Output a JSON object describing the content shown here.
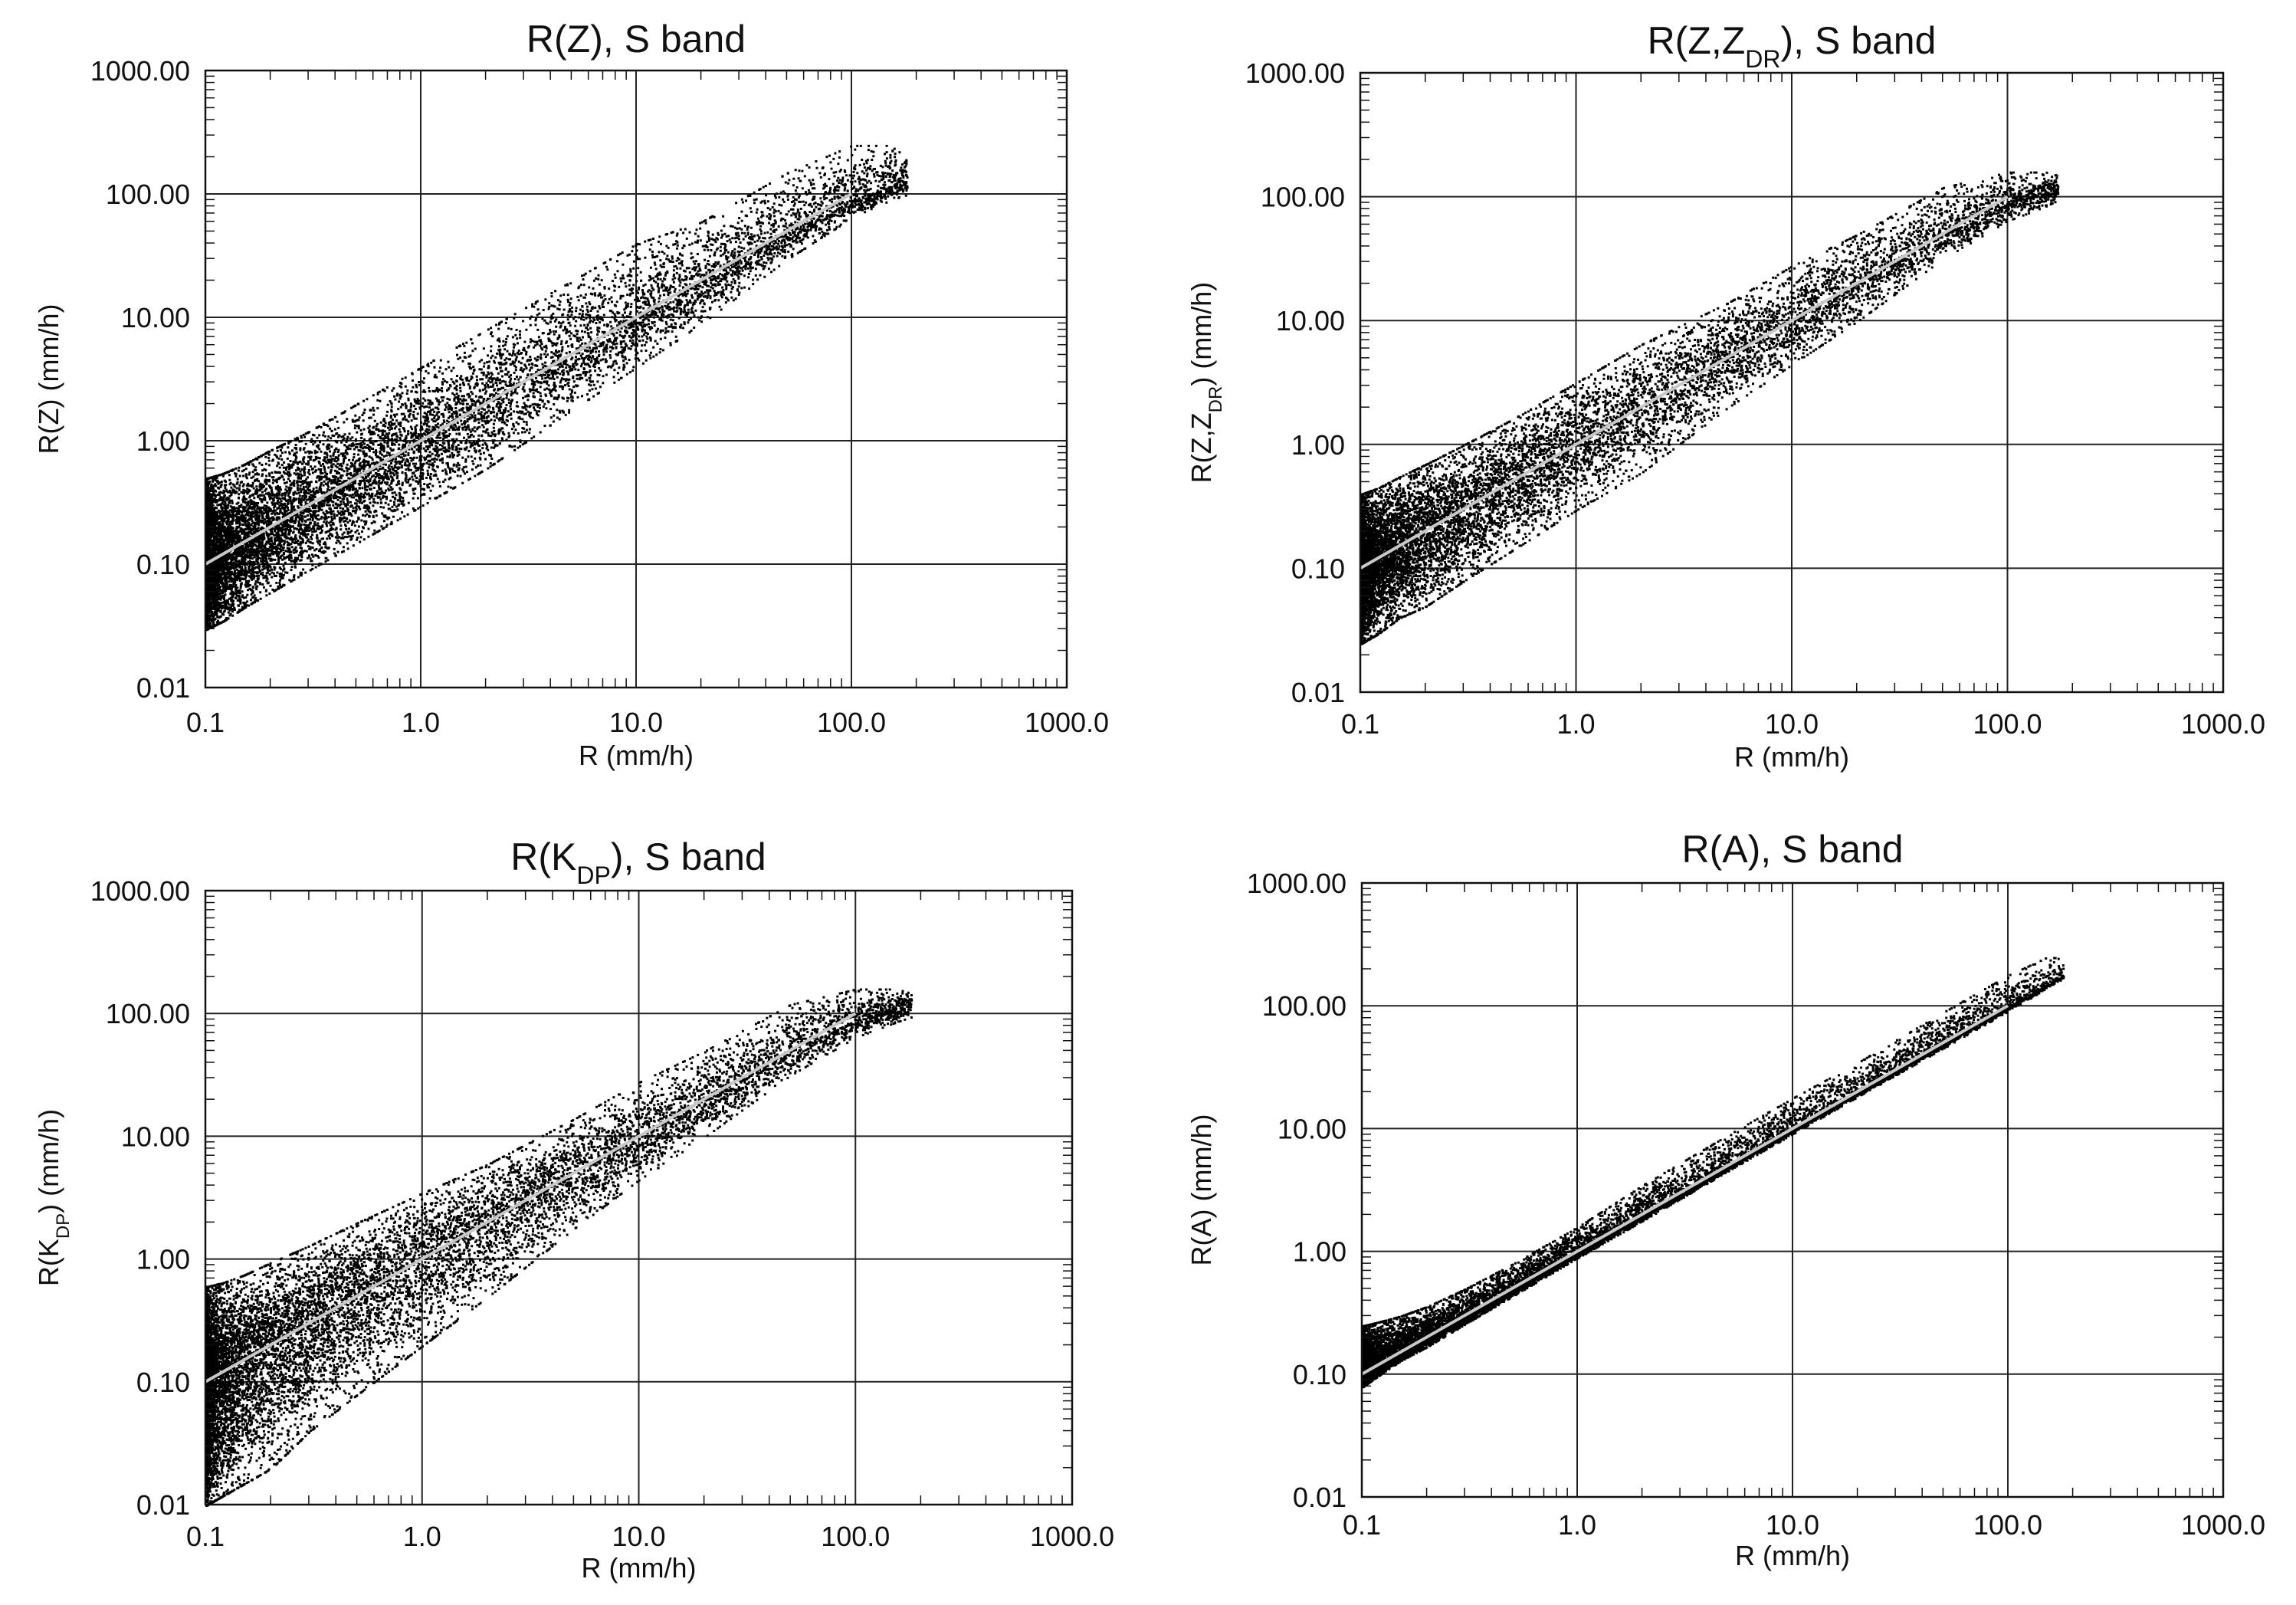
{
  "chart_data": [
    {
      "type": "scatter",
      "title": "R(Z), S band",
      "title_main": "R(Z), S band",
      "title_sub": "",
      "title_tail": "",
      "xlabel": "R (mm/h)",
      "ylabel": "R(Z) (mm/h)",
      "ylabel_main": "R(Z) (mm/h)",
      "ylabel_sub": "",
      "ylabel_tail": "",
      "xscale": "log",
      "yscale": "log",
      "xlim": [
        0.1,
        1000.0
      ],
      "ylim": [
        0.01,
        1000.0
      ],
      "xticks": [
        "0.1",
        "1.0",
        "10.0",
        "100.0",
        "1000.0"
      ],
      "yticks": [
        "0.01",
        "0.10",
        "1.00",
        "10.00",
        "100.00",
        "1000.00"
      ],
      "grid": true,
      "series": [
        {
          "name": "scatter",
          "color": "#000000",
          "x": [
            0.1,
            0.1,
            0.12,
            0.15,
            0.2,
            0.3,
            0.5,
            1.0,
            2.0,
            5.0,
            10.0,
            20.0,
            50.0,
            100.0,
            150.0,
            180.0
          ],
          "y_median": [
            0.1,
            0.1,
            0.12,
            0.15,
            0.2,
            0.3,
            0.5,
            1.0,
            2.0,
            5.0,
            10.0,
            20.0,
            50.0,
            90.0,
            120.0,
            130.0
          ],
          "y_low": [
            0.03,
            0.03,
            0.035,
            0.045,
            0.06,
            0.09,
            0.15,
            0.3,
            0.6,
            1.8,
            4.0,
            9.0,
            30.0,
            65.0,
            90.0,
            100.0
          ],
          "y_high": [
            0.5,
            0.5,
            0.55,
            0.65,
            0.85,
            1.2,
            2.0,
            4.0,
            8.0,
            20.0,
            40.0,
            60.0,
            150.0,
            250.0,
            250.0,
            200.0
          ]
        },
        {
          "name": "1:1 line",
          "color": "#c8c8c8",
          "x": [
            0.1,
            100.0
          ],
          "y": [
            0.1,
            100.0
          ]
        }
      ]
    },
    {
      "type": "scatter",
      "title": "R(Z,ZDR), S band",
      "title_main": "R(Z,Z",
      "title_sub": "DR",
      "title_tail": "), S band",
      "xlabel": "R (mm/h)",
      "ylabel": "R(Z,ZDR) (mm/h)",
      "ylabel_main": "R(Z,Z",
      "ylabel_sub": "DR",
      "ylabel_tail": ") (mm/h)",
      "xscale": "log",
      "yscale": "log",
      "xlim": [
        0.1,
        1000.0
      ],
      "ylim": [
        0.01,
        1000.0
      ],
      "xticks": [
        "0.1",
        "1.0",
        "10.0",
        "100.0",
        "1000.0"
      ],
      "yticks": [
        "0.01",
        "0.10",
        "1.00",
        "10.00",
        "100.00",
        "1000.00"
      ],
      "grid": true,
      "series": [
        {
          "name": "scatter",
          "color": "#000000",
          "x": [
            0.1,
            0.1,
            0.12,
            0.15,
            0.2,
            0.3,
            0.5,
            1.0,
            2.0,
            5.0,
            10.0,
            20.0,
            50.0,
            100.0,
            150.0,
            170.0
          ],
          "y_median": [
            0.1,
            0.1,
            0.12,
            0.15,
            0.2,
            0.3,
            0.5,
            1.0,
            2.0,
            5.0,
            10.0,
            20.0,
            50.0,
            90.0,
            110.0,
            120.0
          ],
          "y_low": [
            0.025,
            0.025,
            0.03,
            0.04,
            0.05,
            0.08,
            0.14,
            0.3,
            0.6,
            2.0,
            4.5,
            10.0,
            32.0,
            65.0,
            85.0,
            95.0
          ],
          "y_high": [
            0.4,
            0.4,
            0.45,
            0.55,
            0.7,
            1.0,
            1.6,
            3.2,
            6.5,
            14.0,
            28.0,
            50.0,
            120.0,
            160.0,
            160.0,
            150.0
          ]
        },
        {
          "name": "1:1 line",
          "color": "#c8c8c8",
          "x": [
            0.1,
            100.0
          ],
          "y": [
            0.1,
            100.0
          ]
        }
      ]
    },
    {
      "type": "scatter",
      "title": "R(KDP), S band",
      "title_main": "R(K",
      "title_sub": "DP",
      "title_tail": "), S band",
      "xlabel": "R (mm/h)",
      "ylabel": "R(KDP) (mm/h)",
      "ylabel_main": "R(K",
      "ylabel_sub": "DP",
      "ylabel_tail": ") (mm/h)",
      "xscale": "log",
      "yscale": "log",
      "xlim": [
        0.1,
        1000.0
      ],
      "ylim": [
        0.01,
        1000.0
      ],
      "xticks": [
        "0.1",
        "1.0",
        "10.0",
        "100.0",
        "1000.0"
      ],
      "yticks": [
        "0.01",
        "0.10",
        "1.00",
        "10.00",
        "100.00",
        "1000.00"
      ],
      "grid": true,
      "series": [
        {
          "name": "scatter",
          "color": "#000000",
          "x": [
            0.1,
            0.1,
            0.12,
            0.15,
            0.2,
            0.3,
            0.5,
            1.0,
            2.0,
            5.0,
            10.0,
            20.0,
            50.0,
            100.0,
            150.0,
            180.0
          ],
          "y_median": [
            0.1,
            0.1,
            0.12,
            0.15,
            0.2,
            0.3,
            0.5,
            1.0,
            2.0,
            5.0,
            10.0,
            20.0,
            50.0,
            90.0,
            110.0,
            120.0
          ],
          "y_low": [
            0.01,
            0.01,
            0.012,
            0.015,
            0.02,
            0.04,
            0.08,
            0.2,
            0.5,
            1.8,
            4.5,
            10.0,
            32.0,
            65.0,
            85.0,
            95.0
          ],
          "y_high": [
            0.6,
            0.6,
            0.65,
            0.75,
            0.95,
            1.3,
            2.0,
            3.5,
            6.0,
            14.0,
            28.0,
            50.0,
            120.0,
            160.0,
            160.0,
            150.0
          ]
        },
        {
          "name": "1:1 line",
          "color": "#c8c8c8",
          "x": [
            0.1,
            100.0
          ],
          "y": [
            0.1,
            100.0
          ]
        }
      ]
    },
    {
      "type": "scatter",
      "title": "R(A), S band",
      "title_main": "R(A), S band",
      "title_sub": "",
      "title_tail": "",
      "xlabel": "R (mm/h)",
      "ylabel": "R(A) (mm/h)",
      "ylabel_main": "R(A) (mm/h)",
      "ylabel_sub": "",
      "ylabel_tail": "",
      "xscale": "log",
      "yscale": "log",
      "xlim": [
        0.1,
        1000.0
      ],
      "ylim": [
        0.01,
        1000.0
      ],
      "xticks": [
        "0.1",
        "1.0",
        "10.0",
        "100.0",
        "1000.0"
      ],
      "yticks": [
        "0.01",
        "0.10",
        "1.00",
        "10.00",
        "100.00",
        "1000.00"
      ],
      "grid": true,
      "series": [
        {
          "name": "scatter",
          "color": "#000000",
          "x": [
            0.1,
            0.1,
            0.12,
            0.15,
            0.2,
            0.3,
            0.5,
            1.0,
            2.0,
            5.0,
            10.0,
            20.0,
            50.0,
            100.0,
            150.0,
            180.0
          ],
          "y_median": [
            0.1,
            0.1,
            0.12,
            0.15,
            0.2,
            0.3,
            0.5,
            1.0,
            2.0,
            5.0,
            10.0,
            20.0,
            50.0,
            100.0,
            150.0,
            180.0
          ],
          "y_low": [
            0.08,
            0.08,
            0.1,
            0.13,
            0.17,
            0.26,
            0.44,
            0.9,
            1.8,
            4.6,
            9.2,
            18.5,
            46.0,
            92.0,
            140.0,
            170.0
          ],
          "y_high": [
            0.25,
            0.25,
            0.27,
            0.3,
            0.36,
            0.5,
            0.8,
            1.6,
            3.5,
            9.0,
            18.0,
            35.0,
            90.0,
            180.0,
            250.0,
            250.0
          ]
        },
        {
          "name": "1:1 line",
          "color": "#c8c8c8",
          "x": [
            0.1,
            100.0
          ],
          "y": [
            0.1,
            100.0
          ]
        }
      ]
    }
  ]
}
